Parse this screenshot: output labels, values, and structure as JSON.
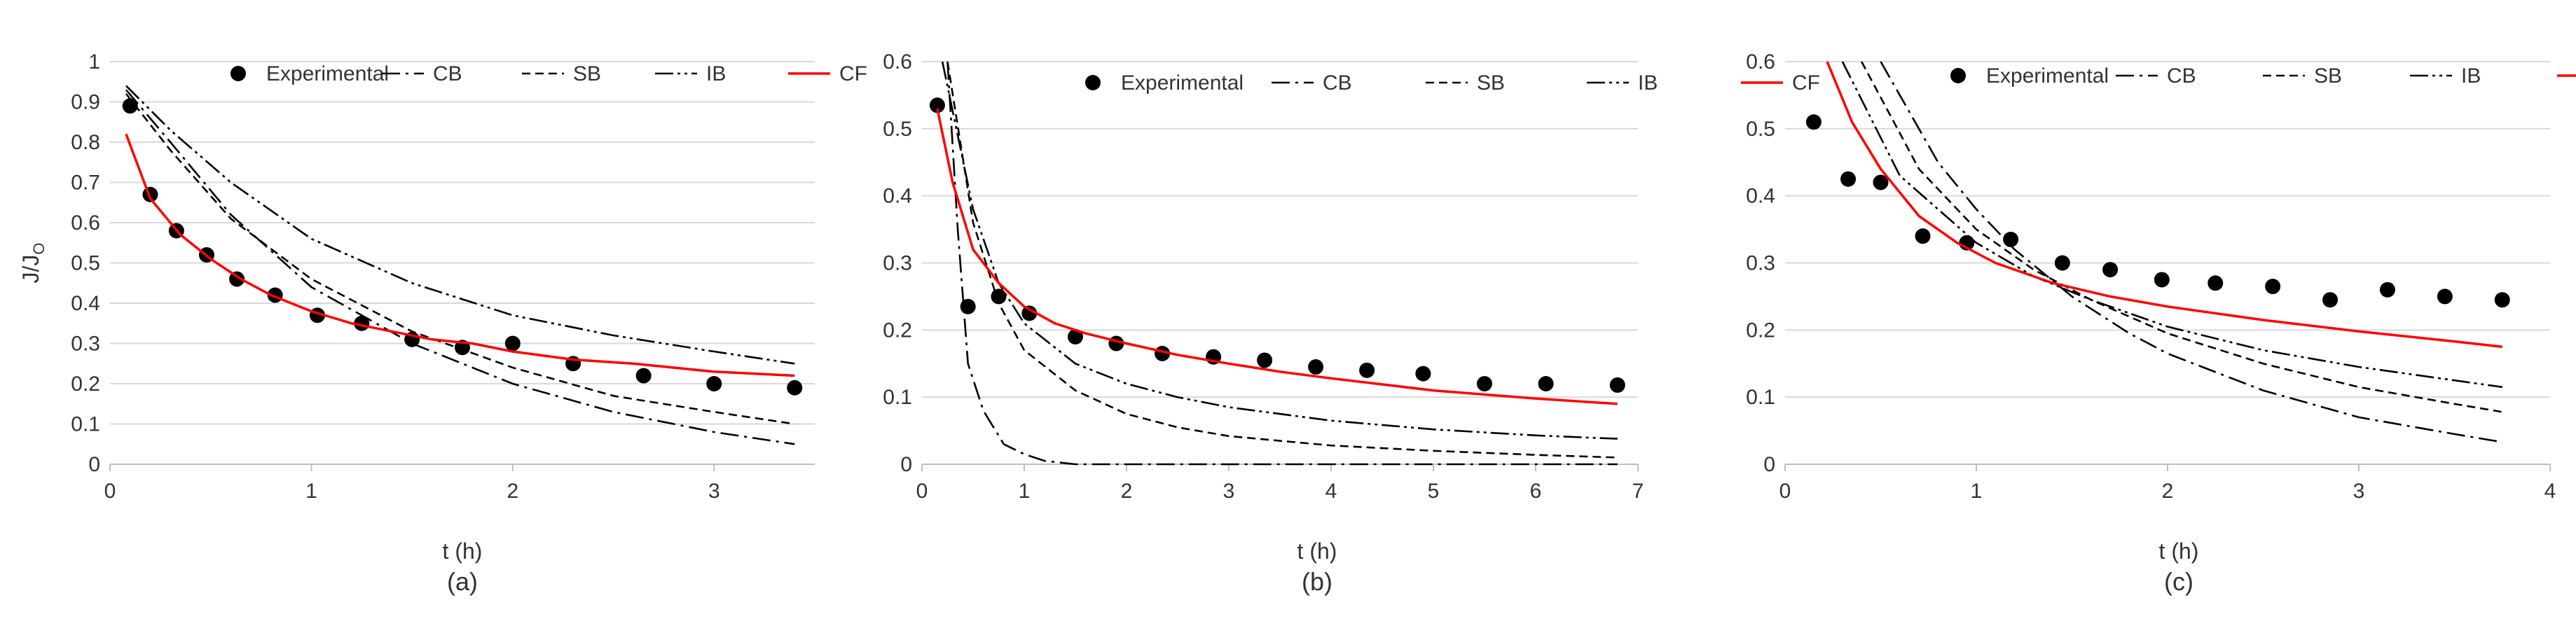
{
  "figure": {
    "legend_labels": {
      "experimental": "Experimental",
      "cb": "CB",
      "sb": "SB",
      "ib": "IB",
      "cf": "CF"
    },
    "colors": {
      "cf": "#ff0000",
      "model": "#000000",
      "marker": "#000000",
      "grid": "#d9d9d9"
    }
  },
  "chart_data": [
    {
      "type": "line",
      "panel_label": "(a)",
      "xlabel": "t (h)",
      "ylabel": "J/J",
      "ylabel_sub": "O",
      "xlim": [
        0,
        3.5
      ],
      "ylim": [
        0,
        1
      ],
      "xticks": [
        0,
        1,
        2,
        3
      ],
      "yticks": [
        0,
        0.1,
        0.2,
        0.3,
        0.4,
        0.5,
        0.6,
        0.7,
        0.8,
        0.9,
        1
      ],
      "ytick_labels": [
        "0",
        "0.1",
        "0.2",
        "0.3",
        "0.4",
        "0.5",
        "0.6",
        "0.7",
        "0.8",
        "0.9",
        "1"
      ],
      "legend": "top-right",
      "series": [
        {
          "name": "Experimental",
          "style": "marker",
          "x": [
            0.1,
            0.2,
            0.33,
            0.48,
            0.63,
            0.82,
            1.03,
            1.25,
            1.5,
            1.75,
            2.0,
            2.3,
            2.65,
            3.0,
            3.4
          ],
          "y": [
            0.89,
            0.67,
            0.58,
            0.52,
            0.46,
            0.42,
            0.37,
            0.35,
            0.31,
            0.29,
            0.3,
            0.25,
            0.22,
            0.2,
            0.19
          ]
        },
        {
          "name": "CB",
          "style": "dashdot",
          "x": [
            0.08,
            0.3,
            0.6,
            1.0,
            1.5,
            2.0,
            2.5,
            3.0,
            3.4
          ],
          "y": [
            0.93,
            0.8,
            0.62,
            0.44,
            0.3,
            0.2,
            0.13,
            0.08,
            0.05
          ]
        },
        {
          "name": "SB",
          "style": "dash",
          "x": [
            0.08,
            0.3,
            0.6,
            1.0,
            1.5,
            2.0,
            2.5,
            3.0,
            3.4
          ],
          "y": [
            0.92,
            0.78,
            0.61,
            0.46,
            0.33,
            0.24,
            0.17,
            0.13,
            0.1
          ]
        },
        {
          "name": "IB",
          "style": "dashdotdot",
          "x": [
            0.08,
            0.3,
            0.6,
            1.0,
            1.5,
            2.0,
            2.5,
            3.0,
            3.4
          ],
          "y": [
            0.94,
            0.83,
            0.7,
            0.56,
            0.45,
            0.37,
            0.32,
            0.28,
            0.25
          ]
        },
        {
          "name": "CF",
          "style": "solid",
          "x": [
            0.08,
            0.2,
            0.35,
            0.5,
            0.65,
            0.8,
            1.0,
            1.2,
            1.4,
            1.6,
            1.8,
            2.0,
            2.3,
            2.6,
            3.0,
            3.4
          ],
          "y": [
            0.82,
            0.66,
            0.57,
            0.51,
            0.46,
            0.42,
            0.38,
            0.35,
            0.33,
            0.31,
            0.3,
            0.28,
            0.26,
            0.25,
            0.23,
            0.22
          ]
        }
      ]
    },
    {
      "type": "line",
      "panel_label": "(b)",
      "xlabel": "t (h)",
      "ylabel": "",
      "ylabel_sub": "",
      "xlim": [
        0,
        7
      ],
      "ylim": [
        0,
        0.6
      ],
      "xticks": [
        0,
        1,
        2,
        3,
        4,
        5,
        6,
        7
      ],
      "yticks": [
        0,
        0.1,
        0.2,
        0.3,
        0.4,
        0.5,
        0.6
      ],
      "ytick_labels": [
        "0",
        "0.1",
        "0.2",
        "0.3",
        "0.4",
        "0.5",
        "0.6"
      ],
      "legend": "top-right",
      "series": [
        {
          "name": "Experimental",
          "style": "marker",
          "x": [
            0.15,
            0.45,
            0.75,
            1.05,
            1.5,
            1.9,
            2.35,
            2.85,
            3.35,
            3.85,
            4.35,
            4.9,
            5.5,
            6.1,
            6.8
          ],
          "y": [
            0.535,
            0.235,
            0.25,
            0.225,
            0.19,
            0.18,
            0.165,
            0.16,
            0.155,
            0.145,
            0.14,
            0.135,
            0.12,
            0.12,
            0.118
          ]
        },
        {
          "name": "CB",
          "style": "dashdot",
          "x": [
            0.25,
            0.35,
            0.45,
            0.6,
            0.8,
            1.0,
            1.2,
            1.5,
            2.0,
            3.0,
            4.0,
            5.0,
            6.0,
            6.8
          ],
          "y": [
            0.6,
            0.35,
            0.15,
            0.08,
            0.03,
            0.015,
            0.005,
            0.0,
            0.0,
            0.0,
            0.0,
            0.0,
            0.0,
            0.0
          ]
        },
        {
          "name": "SB",
          "style": "dash",
          "x": [
            0.25,
            0.5,
            0.75,
            1.0,
            1.5,
            2.0,
            2.5,
            3.0,
            4.0,
            5.0,
            6.0,
            6.8
          ],
          "y": [
            0.6,
            0.36,
            0.24,
            0.17,
            0.11,
            0.075,
            0.055,
            0.042,
            0.028,
            0.02,
            0.014,
            0.01
          ]
        },
        {
          "name": "IB",
          "style": "dashdotdot",
          "x": [
            0.2,
            0.5,
            0.75,
            1.0,
            1.5,
            2.0,
            2.5,
            3.0,
            4.0,
            5.0,
            6.0,
            6.8
          ],
          "y": [
            0.6,
            0.38,
            0.27,
            0.21,
            0.15,
            0.12,
            0.1,
            0.085,
            0.065,
            0.052,
            0.043,
            0.038
          ]
        },
        {
          "name": "CF",
          "style": "solid",
          "x": [
            0.15,
            0.3,
            0.5,
            0.75,
            1.0,
            1.3,
            1.6,
            2.0,
            2.5,
            3.0,
            3.5,
            4.0,
            5.0,
            6.0,
            6.8
          ],
          "y": [
            0.53,
            0.42,
            0.32,
            0.27,
            0.235,
            0.21,
            0.195,
            0.18,
            0.163,
            0.15,
            0.138,
            0.128,
            0.11,
            0.098,
            0.09
          ]
        }
      ]
    },
    {
      "type": "line",
      "panel_label": "(c)",
      "xlabel": "t (h)",
      "ylabel": "",
      "ylabel_sub": "",
      "xlim": [
        0,
        4
      ],
      "ylim": [
        0,
        0.6
      ],
      "xticks": [
        0,
        1,
        2,
        3,
        4
      ],
      "yticks": [
        0,
        0.1,
        0.2,
        0.3,
        0.4,
        0.5,
        0.6
      ],
      "ytick_labels": [
        "0",
        "0.1",
        "0.2",
        "0.3",
        "0.4",
        "0.5",
        "0.6"
      ],
      "legend": "top-right",
      "series": [
        {
          "name": "Experimental",
          "style": "marker",
          "x": [
            0.15,
            0.33,
            0.5,
            0.72,
            0.95,
            1.18,
            1.45,
            1.7,
            1.97,
            2.25,
            2.55,
            2.85,
            3.15,
            3.45,
            3.75
          ],
          "y": [
            0.51,
            0.425,
            0.42,
            0.34,
            0.33,
            0.335,
            0.3,
            0.29,
            0.275,
            0.27,
            0.265,
            0.245,
            0.26,
            0.25,
            0.245
          ]
        },
        {
          "name": "CB",
          "style": "dashdot",
          "x": [
            0.5,
            0.8,
            1.0,
            1.2,
            1.5,
            1.8,
            2.0,
            2.5,
            3.0,
            3.5,
            3.75
          ],
          "y": [
            0.6,
            0.45,
            0.38,
            0.32,
            0.25,
            0.195,
            0.165,
            0.11,
            0.07,
            0.045,
            0.033
          ]
        },
        {
          "name": "SB",
          "style": "dash",
          "x": [
            0.4,
            0.7,
            1.0,
            1.3,
            1.6,
            2.0,
            2.5,
            3.0,
            3.5,
            3.75
          ],
          "y": [
            0.6,
            0.44,
            0.35,
            0.29,
            0.245,
            0.195,
            0.15,
            0.115,
            0.09,
            0.078
          ]
        },
        {
          "name": "IB",
          "style": "dashdotdot",
          "x": [
            0.3,
            0.6,
            1.0,
            1.3,
            1.6,
            2.0,
            2.5,
            3.0,
            3.5,
            3.75
          ],
          "y": [
            0.6,
            0.43,
            0.33,
            0.28,
            0.245,
            0.205,
            0.17,
            0.145,
            0.125,
            0.115
          ]
        },
        {
          "name": "CF",
          "style": "solid",
          "x": [
            0.22,
            0.35,
            0.5,
            0.7,
            0.9,
            1.1,
            1.4,
            1.7,
            2.0,
            2.5,
            3.0,
            3.5,
            3.75
          ],
          "y": [
            0.6,
            0.51,
            0.44,
            0.37,
            0.33,
            0.3,
            0.27,
            0.25,
            0.235,
            0.215,
            0.198,
            0.183,
            0.175
          ]
        }
      ]
    }
  ]
}
